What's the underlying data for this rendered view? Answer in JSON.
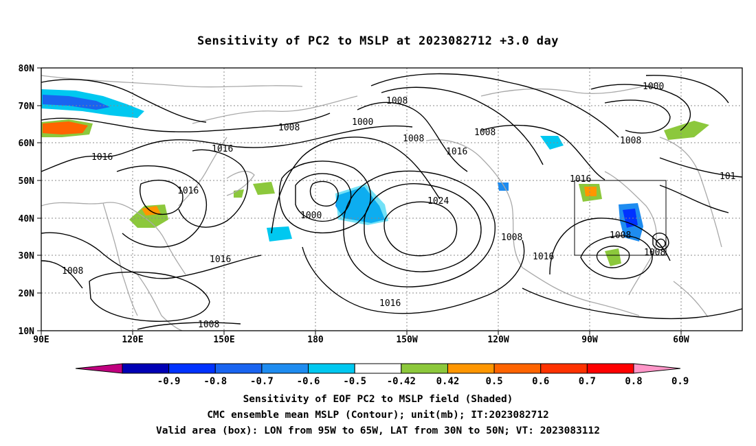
{
  "title": "Sensitivity of PC2 to MSLP at 2023082712 +3.0 day",
  "map": {
    "lat_ticks": [
      "80N",
      "70N",
      "60N",
      "50N",
      "40N",
      "30N",
      "20N",
      "10N"
    ],
    "lon_ticks": [
      "90E",
      "120E",
      "150E",
      "180",
      "150W",
      "120W",
      "90W",
      "60W"
    ],
    "contour_labels": [
      "1000",
      "1008",
      "1016",
      "1024",
      "101"
    ],
    "coast_color": "#a9a9a9",
    "valid_box": {
      "lon_from": "95W",
      "lon_to": "65W",
      "lat_from": "30N",
      "lat_to": "50N"
    }
  },
  "colorbar": {
    "labels": [
      "-0.9",
      "-0.8",
      "-0.7",
      "-0.6",
      "-0.5",
      "-0.42",
      "0.42",
      "0.5",
      "0.6",
      "0.7",
      "0.8",
      "0.9"
    ],
    "colors": [
      "#c0007f",
      "#0000b4",
      "#0032ff",
      "#1964f0",
      "#1e8cf0",
      "#00c8f0",
      "#ffffff",
      "#8cc83c",
      "#ff9600",
      "#ff6400",
      "#ff3200",
      "#ff0000",
      "#ff96c8"
    ]
  },
  "captions": {
    "line1": "Sensitivity of EOF PC2 to MSLP field (Shaded)",
    "line2": "CMC ensemble mean MSLP (Contour); unit(mb); IT:2023082712",
    "line3": "Valid area (box): LON from 95W to 65W, LAT from 30N to 50N; VT: 2023083112"
  }
}
